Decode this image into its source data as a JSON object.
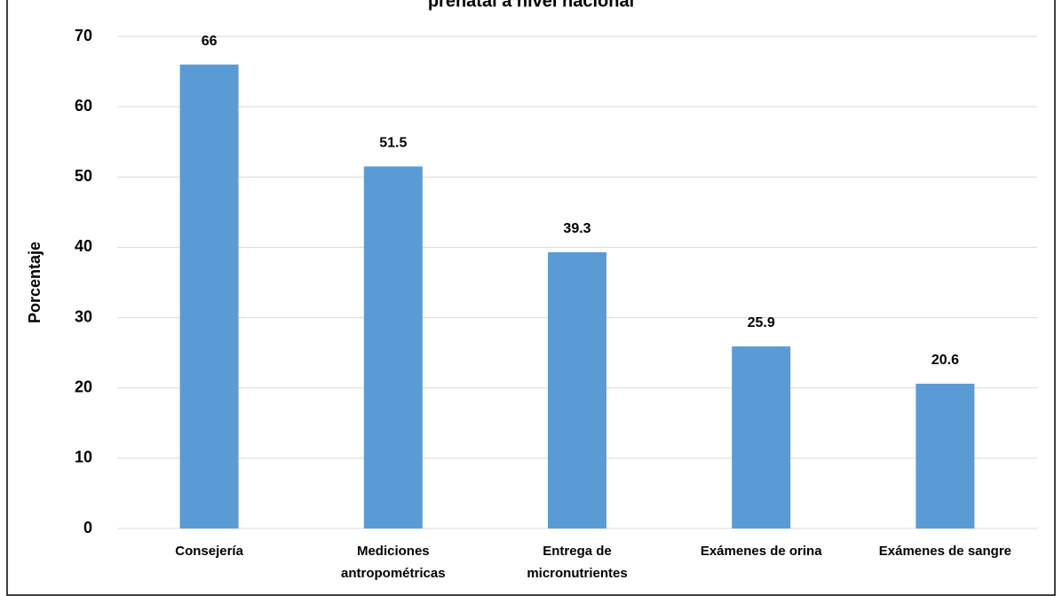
{
  "chart_data": {
    "type": "bar",
    "title": "prenatal a nivel nacional",
    "y_label": "Porcentaje",
    "categories": [
      [
        "Consejería"
      ],
      [
        "Mediciones",
        "antropométricas"
      ],
      [
        "Entrega de",
        "micronutrientes"
      ],
      [
        "Exámenes de orina"
      ],
      [
        "Exámenes de sangre"
      ]
    ],
    "values": [
      66,
      51.5,
      39.3,
      25.9,
      20.6
    ],
    "color": "#5b9bd5",
    "ylim": [
      0,
      70
    ],
    "yticks": [
      0,
      10,
      20,
      30,
      40,
      50,
      60,
      70
    ],
    "grid": true
  }
}
